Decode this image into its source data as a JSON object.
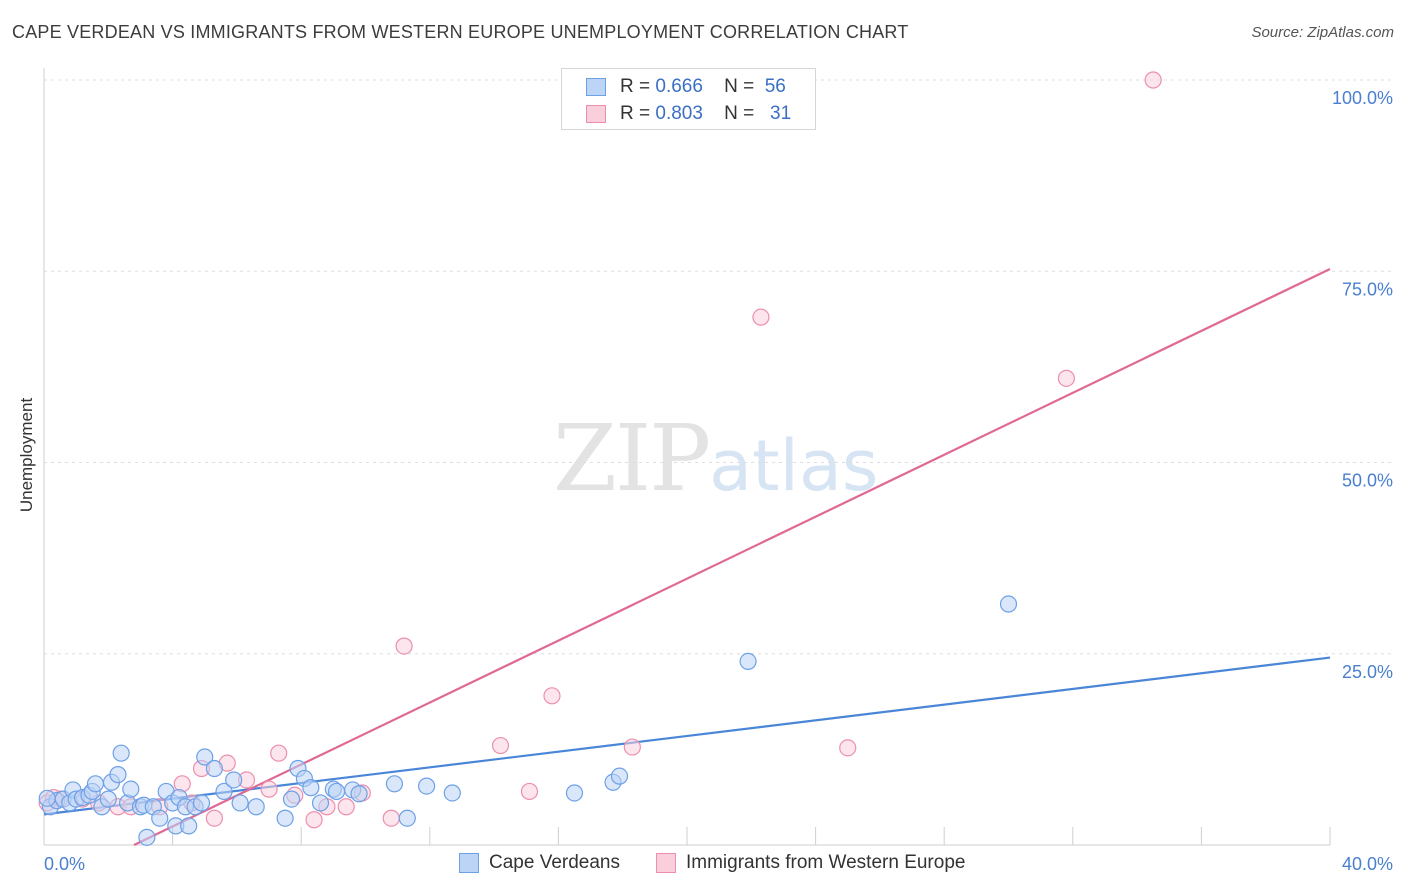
{
  "header": {
    "title": "CAPE VERDEAN VS IMMIGRANTS FROM WESTERN EUROPE UNEMPLOYMENT CORRELATION CHART",
    "source": "Source: ZipAtlas.com"
  },
  "watermark": {
    "zip": "ZIP",
    "atlas": "atlas"
  },
  "legend_top": [
    {
      "r_label": "R =",
      "r_value": "0.666",
      "n_label": "N =",
      "n_value": "56",
      "color": "#6ea0e6",
      "fill": "#bcd4f5"
    },
    {
      "r_label": "R =",
      "r_value": "0.803",
      "n_label": "N =",
      "n_value": "31",
      "color": "#ec8fae",
      "fill": "#f9cfdc"
    }
  ],
  "legend_bottom": [
    {
      "label": "Cape Verdeans",
      "color": "#6ea0e6",
      "fill": "#bcd4f5"
    },
    {
      "label": "Immigrants from Western Europe",
      "color": "#ec8fae",
      "fill": "#f9cfdc"
    }
  ],
  "chart_data": {
    "type": "scatter",
    "title": "CAPE VERDEAN VS IMMIGRANTS FROM WESTERN EUROPE UNEMPLOYMENT CORRELATION CHART",
    "xlabel": "",
    "ylabel": "Unemployment",
    "xlim": [
      0,
      40
    ],
    "ylim": [
      0,
      100
    ],
    "x_tick_labels": [
      "0.0%",
      "40.0%"
    ],
    "y_ticks": [
      25,
      50,
      75,
      100
    ],
    "y_tick_labels": [
      "25.0%",
      "50.0%",
      "75.0%",
      "100.0%"
    ],
    "grid": true,
    "series": [
      {
        "name": "Cape Verdeans",
        "color": "#4a86d8",
        "point_fill": "#bcd4f5",
        "point_stroke": "#6ea0e6",
        "trendline": {
          "x": [
            0,
            40
          ],
          "y": [
            4.0,
            24.5
          ]
        },
        "points": [
          [
            0.2,
            5.0
          ],
          [
            0.4,
            5.8
          ],
          [
            0.6,
            6.0
          ],
          [
            0.8,
            5.5
          ],
          [
            0.9,
            7.2
          ],
          [
            1.0,
            6.0
          ],
          [
            1.2,
            6.2
          ],
          [
            1.4,
            6.5
          ],
          [
            1.5,
            7.0
          ],
          [
            1.6,
            8.0
          ],
          [
            1.8,
            5.0
          ],
          [
            2.0,
            6.0
          ],
          [
            2.1,
            8.2
          ],
          [
            2.3,
            9.2
          ],
          [
            2.4,
            12.0
          ],
          [
            2.6,
            5.5
          ],
          [
            2.7,
            7.3
          ],
          [
            3.0,
            5.0
          ],
          [
            3.1,
            5.2
          ],
          [
            3.2,
            1.0
          ],
          [
            3.4,
            5.0
          ],
          [
            3.6,
            3.5
          ],
          [
            3.8,
            7.0
          ],
          [
            4.0,
            5.5
          ],
          [
            4.1,
            2.5
          ],
          [
            4.2,
            6.2
          ],
          [
            4.4,
            5.0
          ],
          [
            4.5,
            2.5
          ],
          [
            4.7,
            5.0
          ],
          [
            4.9,
            5.5
          ],
          [
            5.0,
            11.5
          ],
          [
            5.3,
            10.0
          ],
          [
            5.6,
            7.0
          ],
          [
            5.9,
            8.5
          ],
          [
            6.1,
            5.5
          ],
          [
            6.6,
            5.0
          ],
          [
            7.5,
            3.5
          ],
          [
            7.7,
            6.0
          ],
          [
            7.9,
            10.0
          ],
          [
            8.1,
            8.7
          ],
          [
            8.3,
            7.5
          ],
          [
            8.6,
            5.5
          ],
          [
            9.0,
            7.3
          ],
          [
            9.1,
            7.0
          ],
          [
            9.6,
            7.2
          ],
          [
            9.8,
            6.7
          ],
          [
            10.9,
            8.0
          ],
          [
            11.3,
            3.5
          ],
          [
            11.9,
            7.7
          ],
          [
            12.7,
            6.8
          ],
          [
            16.5,
            6.8
          ],
          [
            17.7,
            8.2
          ],
          [
            17.9,
            9.0
          ],
          [
            21.9,
            24.0
          ],
          [
            30.0,
            31.5
          ],
          [
            0.1,
            6.1
          ]
        ]
      },
      {
        "name": "Immigrants from Western Europe",
        "color": "#e06894",
        "point_fill": "#f9cfdc",
        "point_stroke": "#ec8fae",
        "trendline": {
          "x": [
            2.8,
            40
          ],
          "y": [
            0.0,
            75.3
          ]
        },
        "points": [
          [
            0.1,
            5.5
          ],
          [
            0.5,
            6.0
          ],
          [
            1.2,
            6.0
          ],
          [
            1.7,
            5.5
          ],
          [
            2.3,
            5.0
          ],
          [
            2.7,
            5.0
          ],
          [
            3.6,
            5.0
          ],
          [
            4.3,
            8.0
          ],
          [
            4.6,
            5.5
          ],
          [
            4.9,
            10.0
          ],
          [
            5.3,
            3.5
          ],
          [
            5.7,
            10.7
          ],
          [
            6.3,
            8.5
          ],
          [
            7.0,
            7.3
          ],
          [
            7.3,
            12.0
          ],
          [
            7.8,
            6.5
          ],
          [
            8.4,
            3.3
          ],
          [
            8.8,
            5.0
          ],
          [
            9.4,
            5.0
          ],
          [
            9.9,
            6.8
          ],
          [
            10.8,
            3.5
          ],
          [
            11.2,
            26.0
          ],
          [
            14.2,
            13.0
          ],
          [
            15.1,
            7.0
          ],
          [
            15.8,
            19.5
          ],
          [
            18.3,
            12.8
          ],
          [
            22.3,
            69.0
          ],
          [
            25.0,
            12.7
          ],
          [
            31.8,
            61.0
          ],
          [
            34.5,
            100.0
          ],
          [
            0.3,
            6.2
          ]
        ]
      }
    ]
  }
}
